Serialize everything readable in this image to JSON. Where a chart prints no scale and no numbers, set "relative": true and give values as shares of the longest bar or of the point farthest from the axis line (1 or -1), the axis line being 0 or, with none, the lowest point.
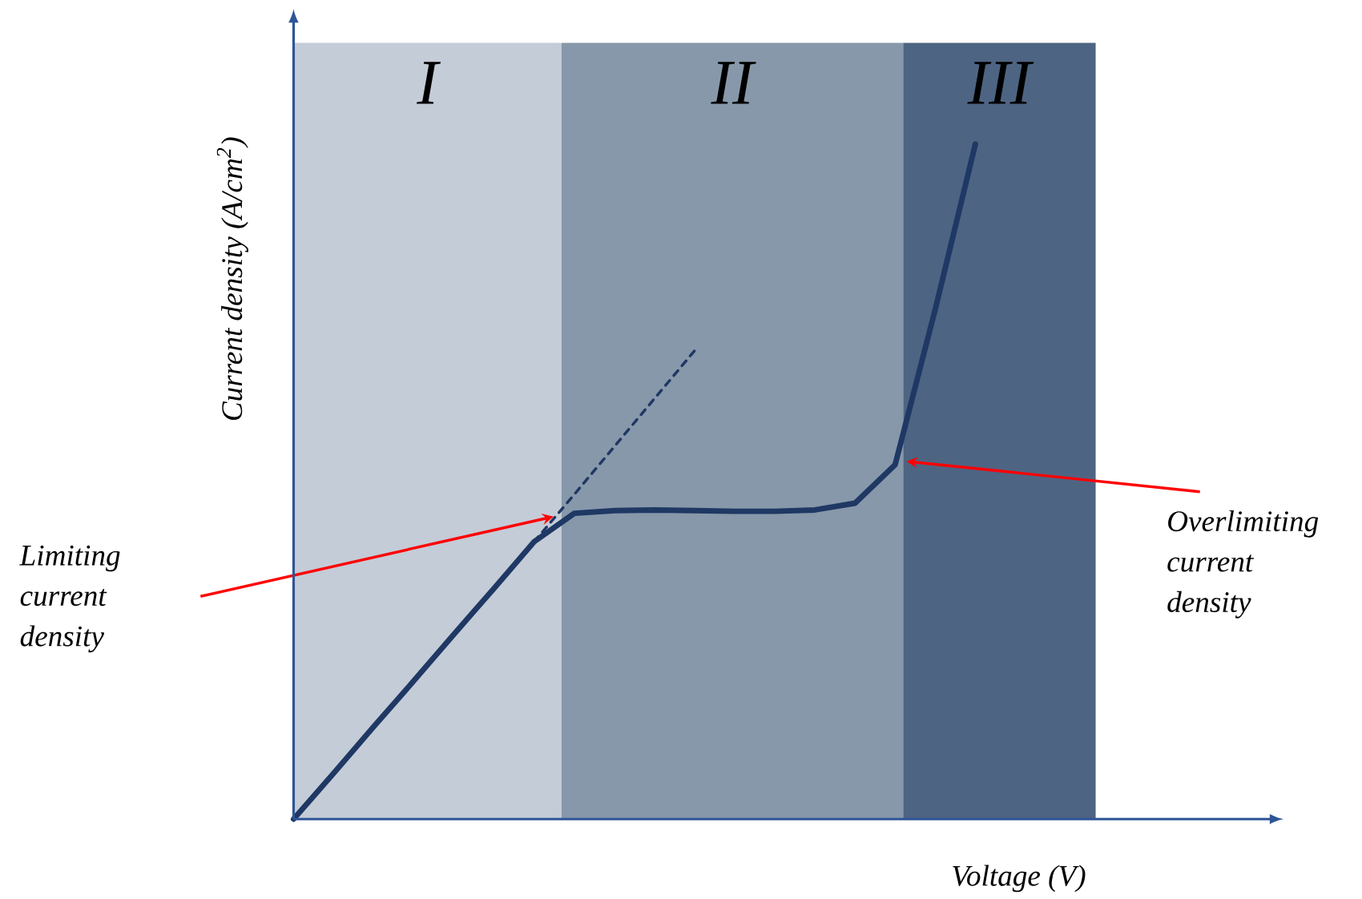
{
  "chart_data": {
    "type": "line",
    "relative": true,
    "xlabel": "Voltage (V)",
    "ylabel": "Current density (A/cm$^{2}$)",
    "categories": [
      null,
      null,
      null,
      null,
      null,
      null,
      null,
      null,
      null,
      null,
      null,
      null,
      null,
      null,
      null,
      null,
      null,
      null,
      null,
      null,
      null
    ],
    "series": [
      {
        "color": "#1f3864",
        "line_style": "solid",
        "values": [
          0,
          0.068,
          0.137,
          0.205,
          0.274,
          0.342,
          0.411,
          0.453,
          0.457,
          0.458,
          0.457,
          0.456,
          0.456,
          0.458,
          0.468,
          0.525,
          0.755,
          1.0,
          null,
          null,
          null
        ]
      },
      {
        "color": "#1f3864",
        "line_style": "dashed",
        "values": [
          null,
          null,
          null,
          null,
          null,
          null,
          0.411,
          0.481,
          0.552,
          0.623,
          0.694,
          null,
          null,
          null,
          null,
          null,
          null,
          null,
          null,
          null,
          null
        ]
      }
    ],
    "annotations": [
      "I",
      "II",
      "III",
      "Limiting current density",
      "Overlimiting current density"
    ]
  }
}
